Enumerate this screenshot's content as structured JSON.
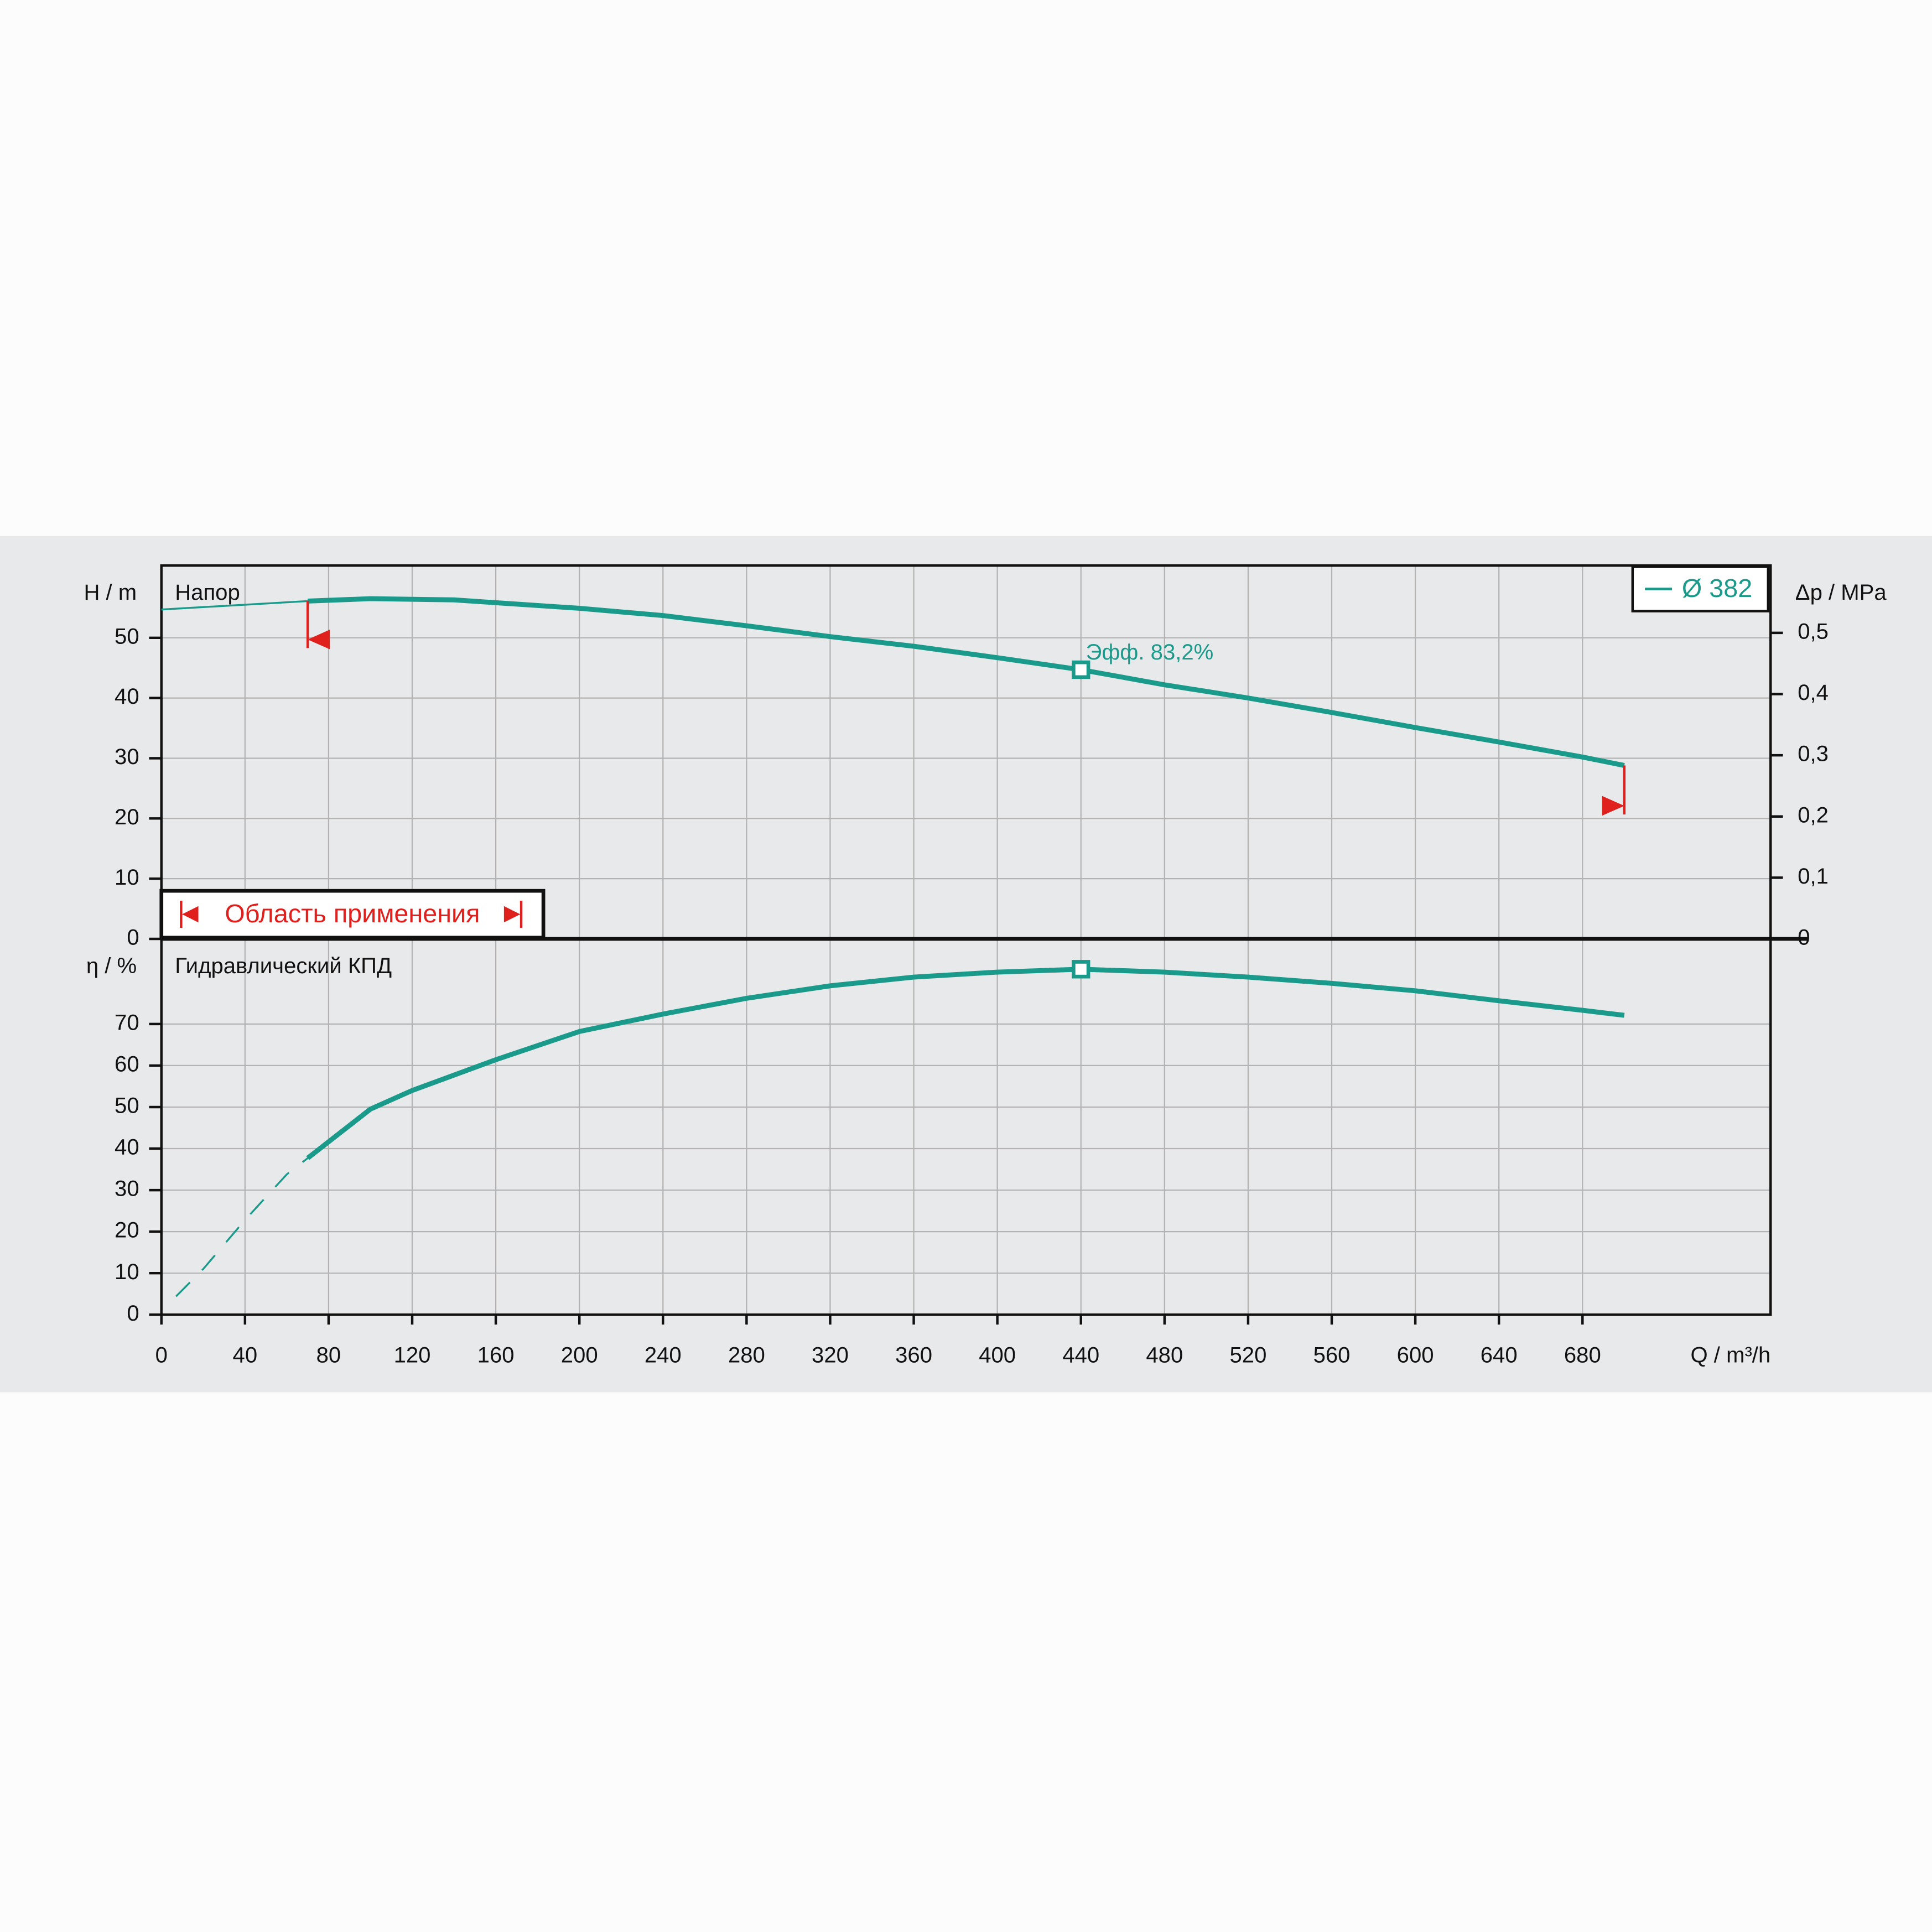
{
  "chart_data": [
    {
      "type": "line",
      "title": "Напор",
      "y_label": "H / m",
      "y2_label": "Δp / MPa",
      "ylim": [
        0,
        62
      ],
      "yticks": [
        0,
        10,
        20,
        30,
        40,
        50
      ],
      "y2lim": [
        0,
        0.61
      ],
      "y2ticks": [
        0,
        {
          "value": 0.1,
          "label": "0,1"
        },
        {
          "value": 0.2,
          "label": "0,2"
        },
        {
          "value": 0.3,
          "label": "0,3"
        },
        {
          "value": 0.4,
          "label": "0,4"
        },
        {
          "value": 0.5,
          "label": "0,5"
        }
      ],
      "x": [
        0,
        70,
        100,
        140,
        200,
        240,
        280,
        320,
        360,
        400,
        440,
        480,
        520,
        560,
        600,
        640,
        680,
        700
      ],
      "series": [
        {
          "name": "Ø 382",
          "color": "#1a9a8a",
          "values": [
            54.7,
            56.1,
            56.5,
            56.3,
            54.9,
            53.7,
            52.0,
            50.2,
            48.6,
            46.7,
            44.7,
            42.2,
            40.0,
            37.6,
            35.1,
            32.7,
            30.2,
            28.8
          ]
        }
      ],
      "annotation": {
        "x": 440,
        "y": 44.7,
        "text": "Эфф.  83,2%"
      },
      "application_range": [
        70,
        700
      ],
      "range_label": "Область применения",
      "range_color": "#e0201c",
      "legend": "upper right",
      "grid": true
    },
    {
      "type": "line",
      "title": "Гидравлический КПД",
      "y_label": "η / %",
      "x_label": "Q / m³/h",
      "xlim": [
        0,
        770
      ],
      "xticks": [
        0,
        40,
        80,
        120,
        160,
        200,
        240,
        280,
        320,
        360,
        400,
        440,
        480,
        520,
        560,
        600,
        640,
        680
      ],
      "ylim": [
        0,
        90.5
      ],
      "yticks": [
        0,
        10,
        20,
        30,
        40,
        50,
        60,
        70
      ],
      "x": [
        7,
        20,
        40,
        60,
        70,
        100,
        120,
        160,
        200,
        240,
        280,
        320,
        360,
        400,
        440,
        480,
        520,
        560,
        600,
        640,
        680,
        700
      ],
      "series": [
        {
          "name": "Ø 382",
          "color": "#1a9a8a",
          "values": [
            4.4,
            11,
            22.8,
            33.8,
            37.7,
            49.5,
            54,
            61.4,
            68.2,
            72.4,
            76.2,
            79.2,
            81.3,
            82.5,
            83.2,
            82.5,
            81.3,
            79.8,
            78,
            75.6,
            73.3,
            72.1
          ]
        }
      ],
      "marker": {
        "x": 440,
        "y": 83.2
      },
      "grid": true
    }
  ]
}
